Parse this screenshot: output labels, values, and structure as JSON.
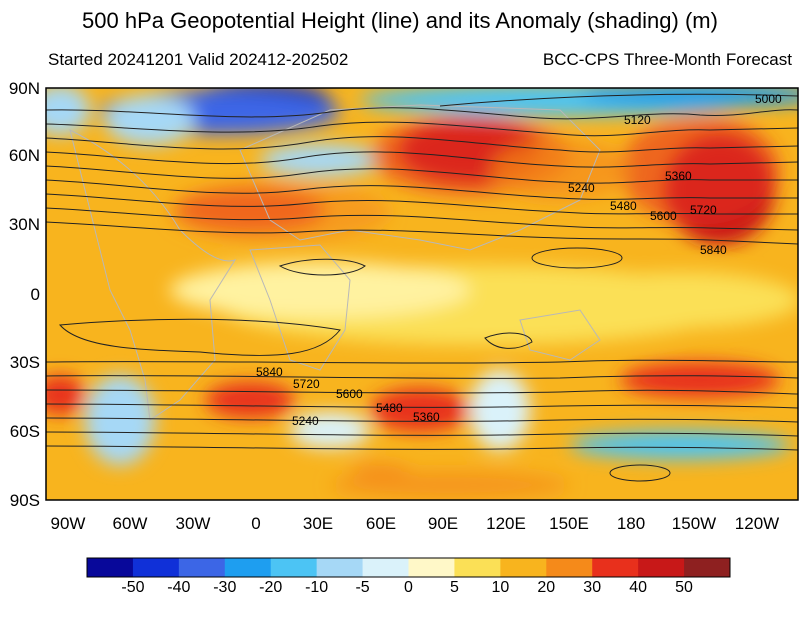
{
  "header": {
    "title": "500 hPa Geopotential Height (line) and its Anomaly (shading) (m)",
    "left_subtitle": "Started 20241201  Valid 202412-202502",
    "right_subtitle": "BCC-CPS Three-Month Forecast"
  },
  "map": {
    "lat_ticks": [
      "90N",
      "60N",
      "30N",
      "0",
      "30S",
      "60S",
      "90S"
    ],
    "lon_ticks": [
      "90W",
      "60W",
      "30W",
      "0",
      "30E",
      "60E",
      "90E",
      "120E",
      "150E",
      "180",
      "150W",
      "120W"
    ],
    "contour_labels": [
      "5000",
      "5120",
      "5360",
      "5240",
      "5480",
      "5600",
      "5720",
      "5840",
      "5840",
      "5720",
      "5600",
      "5480",
      "5360",
      "5240"
    ]
  },
  "colorbar": {
    "labels": [
      "-50",
      "-40",
      "-30",
      "-20",
      "-10",
      "-5",
      "0",
      "5",
      "10",
      "20",
      "30",
      "40",
      "50"
    ],
    "colors": [
      "#08089a",
      "#1030d8",
      "#3c66e6",
      "#1e9ef0",
      "#4cc4f4",
      "#a6d8f6",
      "#daf2fa",
      "#fff8c8",
      "#fbe056",
      "#f8b41e",
      "#f58a1a",
      "#e8301c",
      "#c81818",
      "#8e2020"
    ]
  }
}
